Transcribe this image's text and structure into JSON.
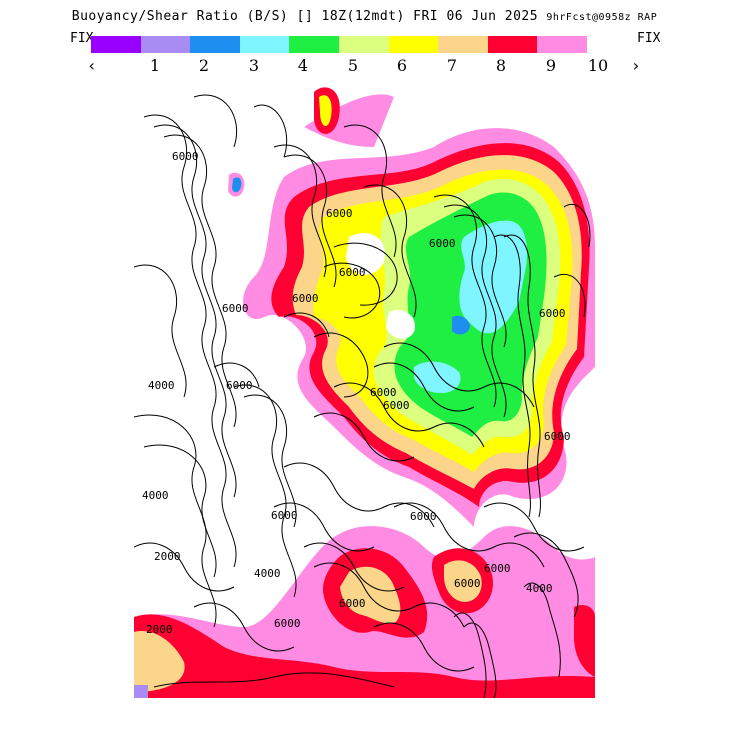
{
  "header": {
    "title_main": "Buoyancy/Shear Ratio (B/S) [] 18Z(12mdt) FRI 06 Jun 2025",
    "title_meta": "9hrFcst@0958z RAP",
    "fix_left": "FIX",
    "fix_right": "FIX",
    "prev_arrow": "‹",
    "next_arrow": "›"
  },
  "colorbar": {
    "colors": [
      "#9a00ff",
      "#a98bf4",
      "#1e8ff0",
      "#7ff5ff",
      "#1fef42",
      "#dcff7f",
      "#ffff00",
      "#fad58a",
      "#ff0033",
      "#ff8be3"
    ],
    "labels": [
      "1",
      "2",
      "3",
      "4",
      "5",
      "6",
      "7",
      "8",
      "9",
      "10"
    ]
  },
  "map": {
    "contour_labels": [
      "6000",
      "6000",
      "6000",
      "6000",
      "6000",
      "6000",
      "6000",
      "6000",
      "6000",
      "6000",
      "6000",
      "6000",
      "6000",
      "6000",
      "6000",
      "4000",
      "4000",
      "4000",
      "4000",
      "2000",
      "2000",
      "6000",
      "6000"
    ]
  }
}
